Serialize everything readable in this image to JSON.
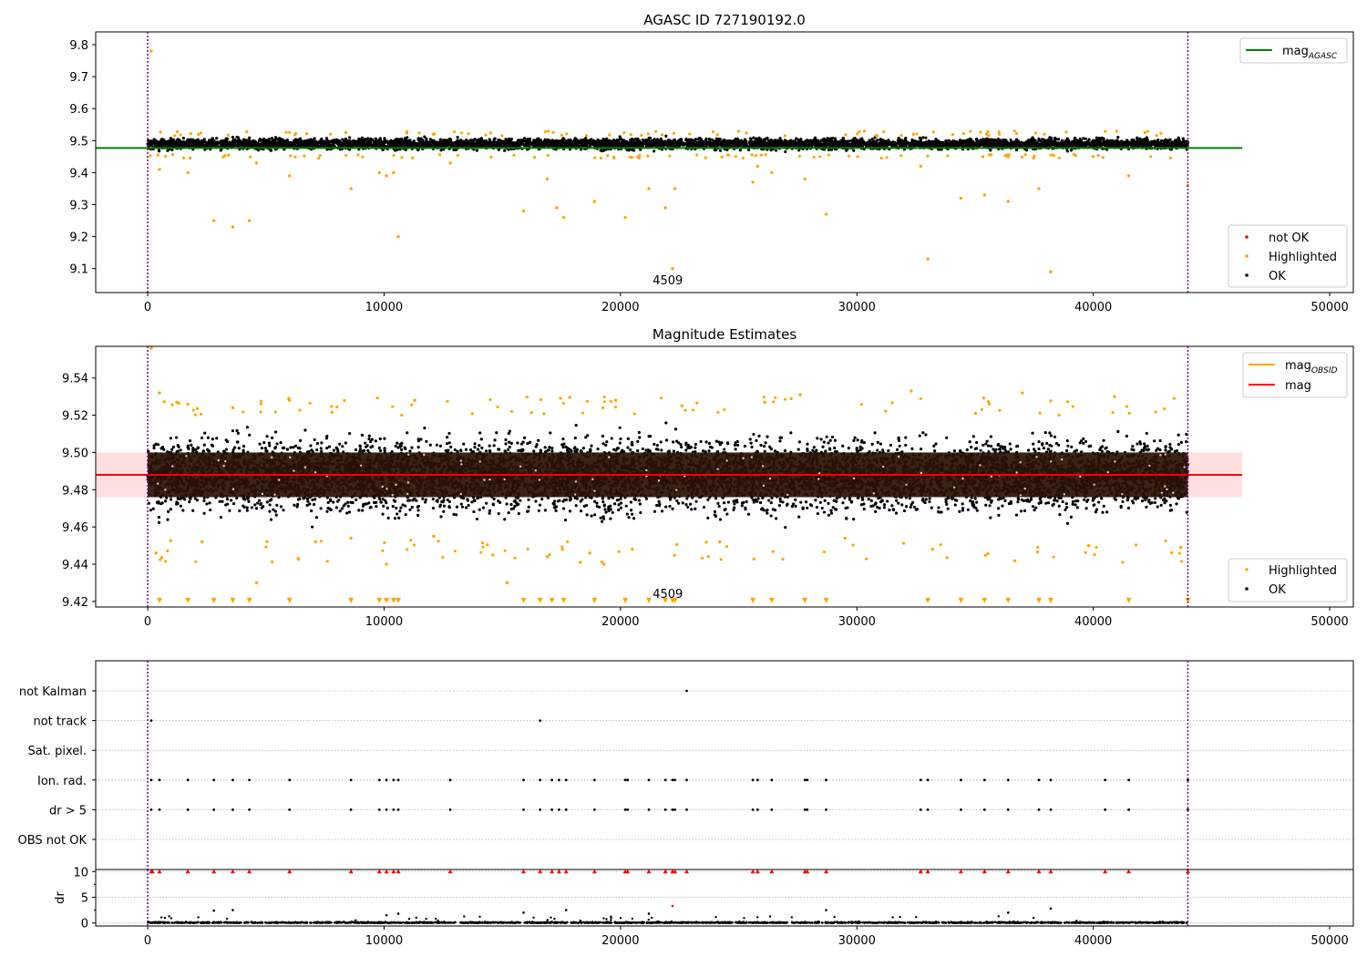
{
  "chart_data": [
    {
      "type": "scatter",
      "title": "AGASC ID 727190192.0",
      "xlim": [
        -2200,
        51000
      ],
      "ylim": [
        9.025,
        9.84
      ],
      "xticks": [
        "0",
        "10000",
        "20000",
        "30000",
        "40000",
        "50000"
      ],
      "xtick_values": [
        0,
        10000,
        20000,
        30000,
        40000,
        50000
      ],
      "yticks": [
        "9.1",
        "9.2",
        "9.3",
        "9.4",
        "9.5",
        "9.6",
        "9.7",
        "9.8"
      ],
      "ytick_values": [
        9.1,
        9.2,
        9.3,
        9.4,
        9.5,
        9.6,
        9.7,
        9.8
      ],
      "vlines": [
        0,
        44000
      ],
      "hline": {
        "name": "mag",
        "sub": "AGASC",
        "value": 9.477,
        "x_range": [
          -2200,
          46300
        ],
        "color": "#008000"
      },
      "annotation": {
        "text": "4509",
        "x": 22000,
        "y": 9.05
      },
      "legend_top": [
        {
          "name": "mag",
          "sub": "AGASC",
          "color": "#008000"
        }
      ],
      "legend_bottom": [
        {
          "name": "not OK",
          "color": "#ff0000"
        },
        {
          "name": "Highlighted",
          "color": "#ffa500"
        },
        {
          "name": "OK",
          "color": "#000000"
        }
      ],
      "band": {
        "x_range": [
          0,
          44000
        ],
        "center": 9.49,
        "half_width": 0.018
      },
      "series": [
        {
          "name": "Highlighted",
          "color": "#ffa500",
          "x": [
            150,
            500,
            1700,
            2800,
            3600,
            4300,
            4600,
            6000,
            8600,
            9800,
            10100,
            10400,
            10600,
            12800,
            15900,
            16900,
            17300,
            17600,
            18900,
            20200,
            21200,
            21900,
            22200,
            22300,
            25600,
            25800,
            26400,
            27800,
            28700,
            32700,
            33000,
            34400,
            35400,
            36400,
            37700,
            38200,
            41500,
            44000
          ],
          "y": [
            9.78,
            9.41,
            9.4,
            9.25,
            9.23,
            9.25,
            9.43,
            9.39,
            9.35,
            9.4,
            9.39,
            9.4,
            9.2,
            9.43,
            9.28,
            9.38,
            9.29,
            9.26,
            9.31,
            9.26,
            9.35,
            9.29,
            9.1,
            9.35,
            9.37,
            9.42,
            9.4,
            9.38,
            9.27,
            9.42,
            9.13,
            9.32,
            9.33,
            9.31,
            9.35,
            9.09,
            9.39,
            9.36
          ]
        }
      ]
    },
    {
      "type": "scatter",
      "title": "Magnitude Estimates",
      "xlim": [
        -2200,
        51000
      ],
      "ylim": [
        9.417,
        9.557
      ],
      "xticks": [
        "0",
        "10000",
        "20000",
        "30000",
        "40000",
        "50000"
      ],
      "xtick_values": [
        0,
        10000,
        20000,
        30000,
        40000,
        50000
      ],
      "yticks": [
        "9.42",
        "9.44",
        "9.46",
        "9.48",
        "9.50",
        "9.52",
        "9.54"
      ],
      "ytick_values": [
        9.42,
        9.44,
        9.46,
        9.48,
        9.5,
        9.52,
        9.54
      ],
      "vlines": [
        0,
        44000
      ],
      "hline": {
        "name": "mag",
        "value": 9.488,
        "x_range": [
          -2200,
          46300
        ],
        "color": "#ff0000"
      },
      "shaded_band": {
        "y_range": [
          9.476,
          9.5
        ],
        "x_range": [
          -2200,
          46300
        ],
        "color": "#ffcccc"
      },
      "annotation": {
        "text": "4509",
        "x": 22000,
        "y": 9.422
      },
      "legend_top": [
        {
          "name": "mag",
          "sub": "OBSID",
          "color": "#ffa500"
        },
        {
          "name": "mag",
          "color": "#ff0000"
        }
      ],
      "legend_bottom": [
        {
          "name": "Highlighted",
          "color": "#ffa500"
        },
        {
          "name": "OK",
          "color": "#000000"
        }
      ],
      "band": {
        "x_range": [
          0,
          44000
        ],
        "center": 9.488,
        "half_width": 0.012
      },
      "series": [
        {
          "name": "Highlighted",
          "color": "#ffa500",
          "x": [
            150,
            350,
            500,
            1700,
            2300,
            3600,
            4600,
            6000,
            7100,
            8600,
            10100,
            11300,
            12100,
            14600,
            15200,
            16900,
            18300,
            18700,
            19300,
            19800,
            20500,
            22600,
            24200,
            26100,
            27600,
            29500,
            32300,
            33200,
            35600,
            37000,
            39800,
            40900,
            43700
          ],
          "y": [
            9.556,
            9.446,
            9.532,
            9.526,
            9.452,
            9.524,
            9.43,
            9.528,
            9.452,
            9.454,
            9.44,
            9.528,
            9.455,
            9.445,
            9.43,
            9.444,
            9.441,
            9.446,
            9.44,
            9.528,
            9.448,
            9.525,
            9.452,
            9.527,
            9.531,
            9.454,
            9.533,
            9.448,
            9.526,
            9.532,
            9.45,
            9.53,
            9.449
          ]
        },
        {
          "name": "Highlighted (clipped)",
          "color": "#ffa500",
          "x": [
            500,
            1700,
            2800,
            3600,
            4300,
            6000,
            8600,
            9800,
            10100,
            10400,
            10600,
            15900,
            16600,
            17100,
            17600,
            18900,
            20200,
            21200,
            21900,
            22200,
            22300,
            25600,
            26400,
            27800,
            28700,
            33000,
            34400,
            35400,
            36400,
            37700,
            38200,
            41500,
            44000
          ],
          "y": [
            9.42,
            9.42,
            9.42,
            9.42,
            9.42,
            9.42,
            9.42,
            9.42,
            9.42,
            9.42,
            9.42,
            9.42,
            9.42,
            9.42,
            9.42,
            9.42,
            9.42,
            9.42,
            9.42,
            9.42,
            9.42,
            9.42,
            9.42,
            9.42,
            9.42,
            9.42,
            9.42,
            9.42,
            9.42,
            9.42,
            9.42,
            9.42,
            9.42
          ]
        }
      ]
    },
    {
      "type": "scatter",
      "title": "",
      "xlim": [
        -2200,
        51000
      ],
      "xticks": [
        "0",
        "10000",
        "20000",
        "30000",
        "40000",
        "50000"
      ],
      "xtick_values": [
        0,
        10000,
        20000,
        30000,
        40000,
        50000
      ],
      "vlines": [
        0,
        44000
      ],
      "flag_labels": [
        "not Kalman",
        "not track",
        "Sat. pixel.",
        "Ion. rad.",
        "dr > 5",
        "OBS not OK"
      ],
      "flags": [
        {
          "name": "not Kalman",
          "x": [
            22800
          ]
        },
        {
          "name": "not track",
          "x": [
            150,
            16600
          ]
        },
        {
          "name": "Sat. pixel.",
          "x": []
        },
        {
          "name": "Ion. rad.",
          "x": [
            150,
            500,
            1700,
            2800,
            3600,
            4300,
            6000,
            8600,
            9800,
            10100,
            10400,
            10600,
            12800,
            15900,
            16600,
            17100,
            17400,
            17700,
            18900,
            20200,
            20300,
            21200,
            21900,
            22200,
            22300,
            22800,
            25600,
            25800,
            26400,
            27800,
            27900,
            28700,
            32700,
            33000,
            34400,
            35400,
            36400,
            37700,
            38200,
            40500,
            41500,
            44000
          ]
        },
        {
          "name": "dr > 5",
          "x": [
            150,
            500,
            1700,
            2800,
            3600,
            4300,
            6000,
            8600,
            9800,
            10100,
            10400,
            10600,
            12800,
            15900,
            16600,
            17100,
            17400,
            17700,
            18900,
            20200,
            20300,
            21200,
            21900,
            22200,
            22300,
            22800,
            25600,
            25800,
            26400,
            27800,
            27900,
            28700,
            32700,
            33000,
            34400,
            35400,
            36400,
            37700,
            38200,
            40500,
            41500,
            44000
          ]
        },
        {
          "name": "OBS not OK",
          "x": []
        }
      ],
      "dr": {
        "ylabel": "dr",
        "ylim": [
          -0.6,
          10.4
        ],
        "yticks": [
          "0",
          "5",
          "10"
        ],
        "ytick_values": [
          0,
          5,
          10
        ],
        "not_ok_x": [
          150,
          200,
          500,
          1700,
          2800,
          3600,
          4300,
          6000,
          8600,
          9800,
          10100,
          10400,
          10600,
          12800,
          15900,
          16600,
          17100,
          17400,
          17700,
          18900,
          20200,
          20300,
          21200,
          21900,
          22200,
          22300,
          22800,
          25600,
          25800,
          26400,
          27800,
          27900,
          28700,
          32700,
          33000,
          34400,
          35400,
          36400,
          37700,
          38200,
          40500,
          41500,
          44000
        ],
        "not_ok_y": 10,
        "outliers": {
          "x": [
            2800,
            3600,
            10100,
            10600,
            15900,
            17700,
            21200,
            22200,
            28700,
            36400,
            38200
          ],
          "y": [
            2.4,
            2.5,
            1.5,
            1.8,
            2.0,
            2.5,
            1.8,
            3.3,
            2.5,
            2.0,
            2.8
          ]
        }
      }
    }
  ]
}
